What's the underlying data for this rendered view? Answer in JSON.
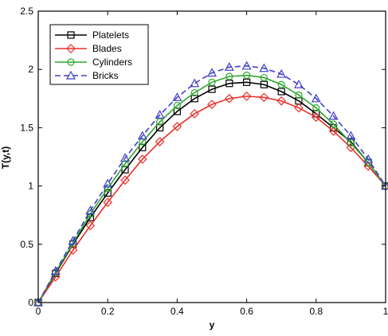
{
  "chart_data": {
    "type": "line",
    "title": "",
    "xlabel": "y",
    "ylabel": "T(y,t)",
    "xlim": [
      0,
      1
    ],
    "ylim": [
      0,
      2.5
    ],
    "xticks": [
      0,
      0.2,
      0.4,
      0.6,
      0.8,
      1
    ],
    "xtick_labels": [
      "0",
      "0.2",
      "0.4",
      "0.6",
      "0.8",
      "1"
    ],
    "yticks": [
      0,
      0.5,
      1,
      1.5,
      2,
      2.5
    ],
    "ytick_labels": [
      "0",
      "0.5",
      "1",
      "1.5",
      "2",
      "2.5"
    ],
    "grid": false,
    "legend_position": "top-left",
    "x": [
      0,
      0.05,
      0.1,
      0.15,
      0.2,
      0.25,
      0.3,
      0.35,
      0.4,
      0.45,
      0.5,
      0.55,
      0.6,
      0.65,
      0.7,
      0.75,
      0.8,
      0.85,
      0.9,
      0.95,
      1
    ],
    "series": [
      {
        "name": "Platelets",
        "color": "#000000",
        "marker": "square",
        "dash": "solid",
        "values": [
          0,
          0.25,
          0.5,
          0.73,
          0.94,
          1.14,
          1.33,
          1.5,
          1.64,
          1.75,
          1.83,
          1.88,
          1.89,
          1.87,
          1.81,
          1.73,
          1.62,
          1.5,
          1.38,
          1.2,
          1.0
        ]
      },
      {
        "name": "Blades",
        "color": "#e8302a",
        "marker": "diamond",
        "dash": "solid",
        "values": [
          0,
          0.22,
          0.45,
          0.66,
          0.86,
          1.05,
          1.23,
          1.38,
          1.51,
          1.62,
          1.7,
          1.75,
          1.77,
          1.76,
          1.73,
          1.67,
          1.59,
          1.47,
          1.33,
          1.17,
          1.0
        ]
      },
      {
        "name": "Cylinders",
        "color": "#2fa82f",
        "marker": "circle",
        "dash": "solid",
        "values": [
          0,
          0.26,
          0.51,
          0.76,
          0.98,
          1.19,
          1.38,
          1.55,
          1.69,
          1.8,
          1.89,
          1.94,
          1.95,
          1.93,
          1.87,
          1.78,
          1.67,
          1.53,
          1.37,
          1.2,
          1.0
        ]
      },
      {
        "name": "Bricks",
        "color": "#4040c8",
        "marker": "triangle",
        "dash": "dashed",
        "values": [
          0,
          0.27,
          0.53,
          0.79,
          1.02,
          1.24,
          1.43,
          1.61,
          1.76,
          1.88,
          1.97,
          2.02,
          2.03,
          2.01,
          1.96,
          1.87,
          1.75,
          1.6,
          1.43,
          1.23,
          1.0
        ]
      }
    ]
  }
}
